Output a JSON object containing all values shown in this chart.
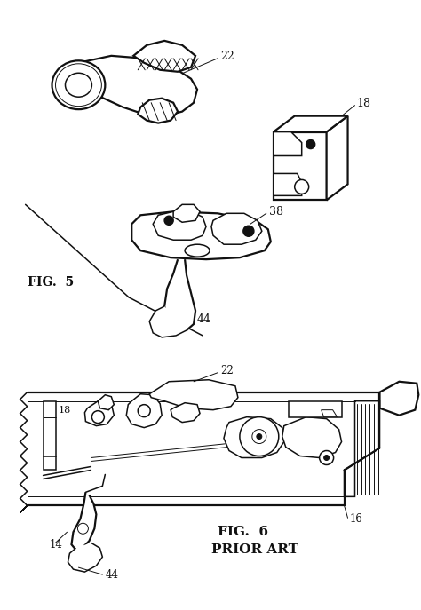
{
  "bg_color": "#ffffff",
  "lc": "#111111",
  "fig_width": 4.74,
  "fig_height": 6.87,
  "dpi": 100,
  "fig5_label": "FIG.  5",
  "fig6_label": "FIG.  6",
  "prior_art_label": "PRIOR ART",
  "lw_thin": 0.7,
  "lw_med": 1.1,
  "lw_thick": 1.6
}
